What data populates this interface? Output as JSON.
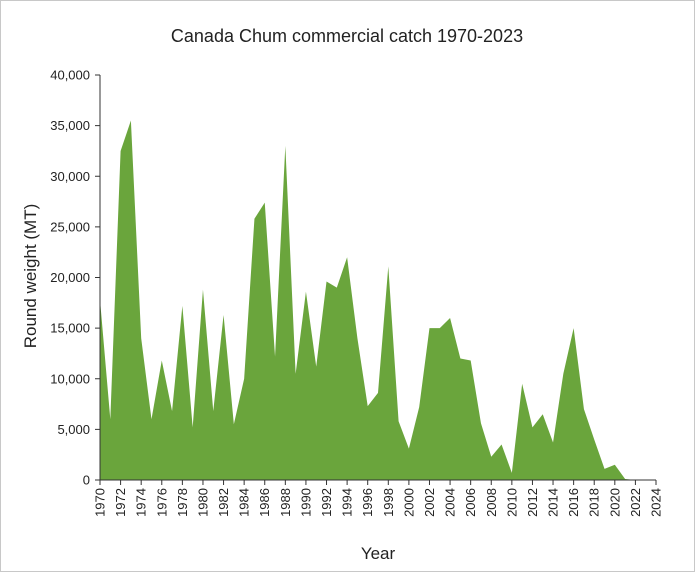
{
  "chart_data": {
    "type": "area",
    "title": "Canada Chum commercial catch 1970-2023",
    "xlabel": "Year",
    "ylabel": "Round weight (MT)",
    "xlim": [
      1970,
      2024
    ],
    "ylim": [
      0,
      40000
    ],
    "grid": false,
    "color": "#6aa53c",
    "y_ticks": [
      0,
      5000,
      10000,
      15000,
      20000,
      25000,
      30000,
      35000,
      40000
    ],
    "y_tick_labels": [
      "0",
      "5,000",
      "10,000",
      "15,000",
      "20,000",
      "25,000",
      "30,000",
      "35,000",
      "40,000"
    ],
    "x_ticks": [
      1970,
      1972,
      1974,
      1976,
      1978,
      1980,
      1982,
      1984,
      1986,
      1988,
      1990,
      1992,
      1994,
      1996,
      1998,
      2000,
      2002,
      2004,
      2006,
      2008,
      2010,
      2012,
      2014,
      2016,
      2018,
      2020,
      2022,
      2024
    ],
    "x_tick_labels": [
      "1970",
      "1972",
      "1974",
      "1976",
      "1978",
      "1980",
      "1982",
      "1984",
      "1986",
      "1988",
      "1990",
      "1992",
      "1994",
      "1996",
      "1998",
      "2000",
      "2002",
      "2004",
      "2006",
      "2008",
      "2010",
      "2012",
      "2014",
      "2016",
      "2018",
      "2020",
      "2022",
      "2024"
    ],
    "x": [
      1970,
      1971,
      1972,
      1973,
      1974,
      1975,
      1976,
      1977,
      1978,
      1979,
      1980,
      1981,
      1982,
      1983,
      1984,
      1985,
      1986,
      1987,
      1988,
      1989,
      1990,
      1991,
      1992,
      1993,
      1994,
      1995,
      1996,
      1997,
      1998,
      1999,
      2000,
      2001,
      2002,
      2003,
      2004,
      2005,
      2006,
      2007,
      2008,
      2009,
      2010,
      2011,
      2012,
      2013,
      2014,
      2015,
      2016,
      2017,
      2018,
      2019,
      2020,
      2021,
      2022,
      2023
    ],
    "values": [
      17800,
      6000,
      32500,
      35500,
      14000,
      6000,
      11800,
      6800,
      17200,
      5200,
      18800,
      6800,
      16300,
      5500,
      10000,
      25800,
      27400,
      12200,
      33000,
      10500,
      18600,
      11200,
      19600,
      19000,
      22000,
      14000,
      7300,
      8600,
      21100,
      5800,
      3100,
      7200,
      15000,
      15000,
      16000,
      12000,
      11800,
      5600,
      2300,
      3500,
      700,
      9500,
      5200,
      6500,
      3700,
      10500,
      15000,
      7000,
      4000,
      1100,
      1500,
      100,
      0,
      0
    ]
  }
}
